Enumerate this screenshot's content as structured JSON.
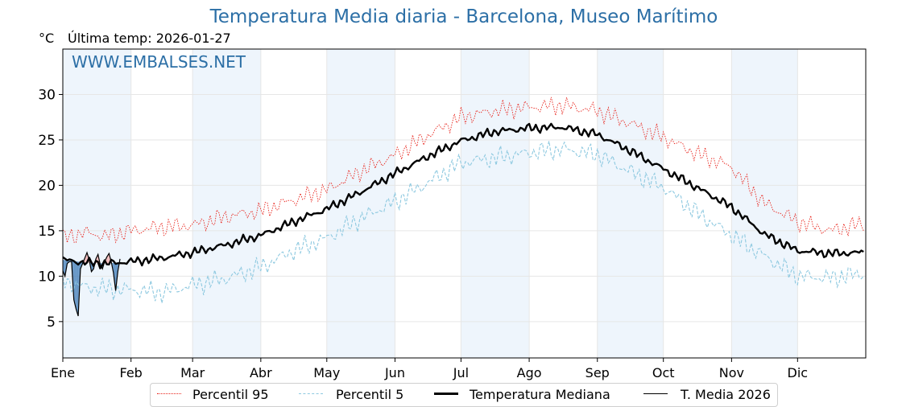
{
  "title": "Temperatura Media diaria - Barcelona, Museo Marítimo",
  "unit": "°C",
  "last_temp": "Última temp: 2026-01-27",
  "watermark": "WWW.EMBALSES.NET",
  "legend": {
    "p95": "Percentil 95",
    "p5": "Percentil 5",
    "median": "Temperatura Mediana",
    "current": "T. Media 2026"
  },
  "colors": {
    "title": "#2c6fa6",
    "p95": "#e8241c",
    "p5": "#8ec9e0",
    "median": "#000000",
    "current": "#000000",
    "above_fill": "#f2b3b3",
    "below_fill": "#3b78b5",
    "band": "#eef5fc"
  },
  "chart_data": {
    "type": "line",
    "ylim": [
      1,
      35
    ],
    "yticks": [
      5,
      10,
      15,
      20,
      25,
      30
    ],
    "x_ticks": [
      "Ene",
      "Feb",
      "Mar",
      "Abr",
      "May",
      "Jun",
      "Jul",
      "Ago",
      "Sep",
      "Oct",
      "Nov",
      "Dic"
    ],
    "month_start_days": [
      0,
      31,
      59,
      90,
      120,
      151,
      181,
      212,
      243,
      273,
      304,
      334
    ],
    "days_in_year": 365,
    "grid": true,
    "legend_position": "bottom",
    "series": [
      {
        "key": "p95",
        "name": "Percentil 95",
        "style": "dotted",
        "day": [
          0,
          10,
          20,
          31,
          45,
          59,
          75,
          90,
          105,
          120,
          135,
          151,
          166,
          181,
          196,
          212,
          227,
          243,
          258,
          273,
          288,
          304,
          319,
          334,
          349,
          364
        ],
        "values": [
          14.2,
          14.8,
          14.4,
          15.0,
          15.4,
          15.6,
          16.6,
          17.2,
          18.4,
          19.5,
          21.5,
          23.3,
          25.5,
          27.5,
          28.2,
          28.6,
          28.8,
          28.2,
          26.8,
          25.3,
          23.5,
          22.0,
          18.0,
          16.0,
          15.0,
          15.8
        ]
      },
      {
        "key": "p5",
        "name": "Percentil 5",
        "style": "dashed",
        "day": [
          0,
          10,
          20,
          31,
          45,
          59,
          75,
          90,
          105,
          120,
          135,
          151,
          166,
          181,
          196,
          212,
          227,
          243,
          258,
          273,
          288,
          304,
          319,
          334,
          349,
          364
        ],
        "values": [
          9.5,
          8.8,
          8.6,
          8.5,
          8.2,
          9.0,
          9.8,
          11.0,
          12.8,
          14.2,
          16.3,
          18.2,
          20.3,
          22.5,
          23.0,
          23.6,
          24.0,
          23.4,
          21.5,
          19.8,
          17.0,
          14.5,
          12.2,
          10.0,
          9.8,
          10.3
        ]
      },
      {
        "key": "median",
        "name": "Temperatura Mediana",
        "style": "solid-bold",
        "day": [
          0,
          10,
          20,
          31,
          45,
          59,
          75,
          90,
          105,
          120,
          135,
          151,
          166,
          181,
          196,
          212,
          227,
          243,
          258,
          273,
          288,
          304,
          319,
          334,
          349,
          364
        ],
        "values": [
          11.8,
          11.5,
          11.4,
          11.6,
          12.0,
          12.6,
          13.5,
          14.5,
          16.0,
          17.4,
          19.2,
          21.3,
          23.2,
          24.9,
          25.9,
          26.3,
          26.4,
          25.6,
          23.8,
          21.8,
          19.8,
          17.6,
          14.6,
          12.8,
          12.5,
          12.6
        ]
      },
      {
        "key": "current",
        "name": "T. Media 2026",
        "style": "solid",
        "day": [
          0,
          1,
          2,
          3,
          4,
          5,
          6,
          7,
          8,
          9,
          10,
          11,
          12,
          13,
          14,
          15,
          16,
          17,
          18,
          19,
          20,
          21,
          22,
          23,
          24,
          25,
          26
        ],
        "values": [
          10.6,
          10.0,
          11.4,
          11.6,
          11.6,
          7.4,
          6.4,
          5.6,
          10.8,
          11.4,
          12.0,
          12.6,
          11.8,
          10.5,
          10.8,
          11.9,
          12.4,
          11.3,
          10.8,
          11.6,
          12.1,
          12.5,
          11.6,
          10.4,
          8.4,
          10.5,
          11.9
        ]
      }
    ]
  }
}
